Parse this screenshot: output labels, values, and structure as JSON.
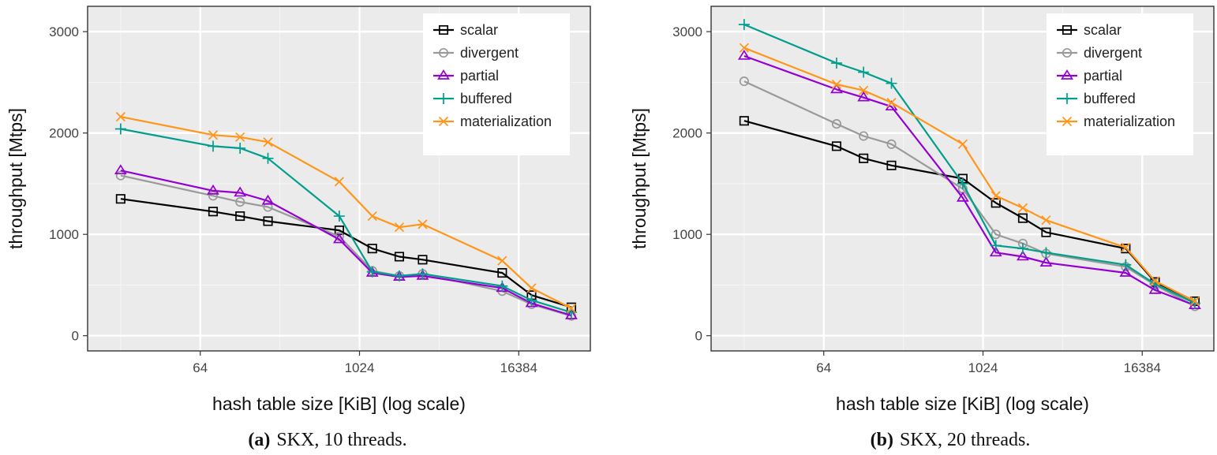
{
  "chart_data": [
    {
      "type": "line",
      "caption_label": "(a)",
      "caption_text": "SKX, 10 threads.",
      "xlabel": "hash table size [KiB] (log scale)",
      "ylabel": "throughput [Mtps]",
      "x_scale": "log2",
      "xlim": [
        9,
        57000
      ],
      "ylim": [
        -150,
        3250
      ],
      "xticks": [
        64,
        1024,
        16384
      ],
      "xtick_labels": [
        "64",
        "1024",
        "16384"
      ],
      "yticks": [
        0,
        1000,
        2000,
        3000
      ],
      "ytick_labels": [
        "0",
        "1000",
        "2000",
        "3000"
      ],
      "grid": true,
      "legend": "top-right",
      "x": [
        16,
        80,
        128,
        208,
        720,
        1280,
        2048,
        3072,
        12288,
        20480,
        40960
      ],
      "series": [
        {
          "name": "scalar",
          "color": "#000000",
          "marker": "square",
          "values": [
            1350,
            1225,
            1180,
            1130,
            1040,
            860,
            780,
            750,
            620,
            400,
            280
          ]
        },
        {
          "name": "divergent",
          "color": "#999999",
          "marker": "circle",
          "values": [
            1580,
            1380,
            1320,
            1270,
            980,
            640,
            590,
            610,
            440,
            310,
            195
          ]
        },
        {
          "name": "partial",
          "color": "#9400d3",
          "marker": "triangle",
          "values": [
            1630,
            1430,
            1410,
            1330,
            950,
            620,
            580,
            590,
            470,
            320,
            200
          ]
        },
        {
          "name": "buffered",
          "color": "#009e8c",
          "marker": "plus",
          "values": [
            2040,
            1870,
            1850,
            1750,
            1180,
            630,
            590,
            610,
            490,
            350,
            230
          ]
        },
        {
          "name": "materialization",
          "color": "#ff9519",
          "marker": "cross",
          "values": [
            2160,
            1980,
            1960,
            1910,
            1520,
            1180,
            1070,
            1100,
            740,
            470,
            270
          ]
        }
      ]
    },
    {
      "type": "line",
      "caption_label": "(b)",
      "caption_text": "SKX, 20 threads.",
      "xlabel": "hash table size [KiB] (log scale)",
      "ylabel": "throughput [Mtps]",
      "x_scale": "log2",
      "xlim": [
        9,
        57000
      ],
      "ylim": [
        -150,
        3250
      ],
      "xticks": [
        64,
        1024,
        16384
      ],
      "xtick_labels": [
        "64",
        "1024",
        "16384"
      ],
      "yticks": [
        0,
        1000,
        2000,
        3000
      ],
      "ytick_labels": [
        "0",
        "1000",
        "2000",
        "3000"
      ],
      "grid": true,
      "legend": "top-right",
      "x": [
        16,
        80,
        128,
        208,
        720,
        1280,
        2048,
        3072,
        12288,
        20480,
        40960
      ],
      "series": [
        {
          "name": "scalar",
          "color": "#000000",
          "marker": "square",
          "values": [
            2120,
            1870,
            1750,
            1680,
            1550,
            1310,
            1160,
            1020,
            860,
            530,
            340
          ]
        },
        {
          "name": "divergent",
          "color": "#999999",
          "marker": "circle",
          "values": [
            2510,
            2090,
            1970,
            1890,
            1450,
            1000,
            910,
            810,
            680,
            500,
            290
          ]
        },
        {
          "name": "partial",
          "color": "#9400d3",
          "marker": "triangle",
          "values": [
            2760,
            2430,
            2350,
            2260,
            1360,
            820,
            780,
            720,
            620,
            450,
            300
          ]
        },
        {
          "name": "buffered",
          "color": "#009e8c",
          "marker": "plus",
          "values": [
            3070,
            2690,
            2600,
            2490,
            1500,
            890,
            860,
            820,
            700,
            510,
            320
          ]
        },
        {
          "name": "materialization",
          "color": "#ff9519",
          "marker": "cross",
          "values": [
            2840,
            2480,
            2420,
            2300,
            1890,
            1380,
            1260,
            1140,
            870,
            540,
            340
          ]
        }
      ]
    }
  ]
}
